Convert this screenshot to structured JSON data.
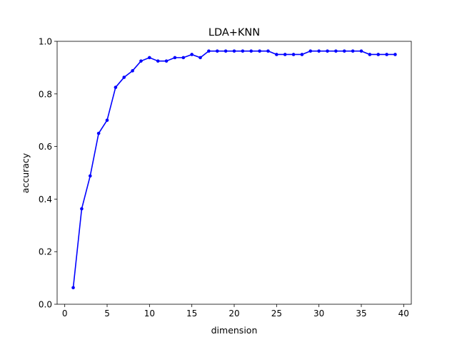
{
  "chart_data": {
    "type": "line",
    "title": "LDA+KNN",
    "xlabel": "dimension",
    "ylabel": "accuracy",
    "xlim": [
      -0.9,
      40.9
    ],
    "ylim": [
      0.0,
      1.0
    ],
    "xticks": [
      0,
      5,
      10,
      15,
      20,
      25,
      30,
      35,
      40
    ],
    "yticks": [
      0.0,
      0.2,
      0.4,
      0.6,
      0.8,
      1.0
    ],
    "xtick_labels": [
      "0",
      "5",
      "10",
      "15",
      "20",
      "25",
      "30",
      "35",
      "40"
    ],
    "ytick_labels": [
      "0.0",
      "0.2",
      "0.4",
      "0.6",
      "0.8",
      "1.0"
    ],
    "grid": false,
    "series": [
      {
        "color": "#0000ff",
        "marker": "circle",
        "x": [
          1,
          2,
          3,
          4,
          5,
          6,
          7,
          8,
          9,
          10,
          11,
          12,
          13,
          14,
          15,
          16,
          17,
          18,
          19,
          20,
          21,
          22,
          23,
          24,
          25,
          26,
          27,
          28,
          29,
          30,
          31,
          32,
          33,
          34,
          35,
          36,
          37,
          38,
          39
        ],
        "y": [
          0.063,
          0.363,
          0.488,
          0.65,
          0.7,
          0.825,
          0.863,
          0.888,
          0.925,
          0.938,
          0.925,
          0.925,
          0.938,
          0.938,
          0.95,
          0.938,
          0.963,
          0.963,
          0.963,
          0.963,
          0.963,
          0.963,
          0.963,
          0.963,
          0.95,
          0.95,
          0.95,
          0.95,
          0.963,
          0.963,
          0.963,
          0.963,
          0.963,
          0.963,
          0.963,
          0.95,
          0.95,
          0.95,
          0.95
        ]
      }
    ]
  }
}
